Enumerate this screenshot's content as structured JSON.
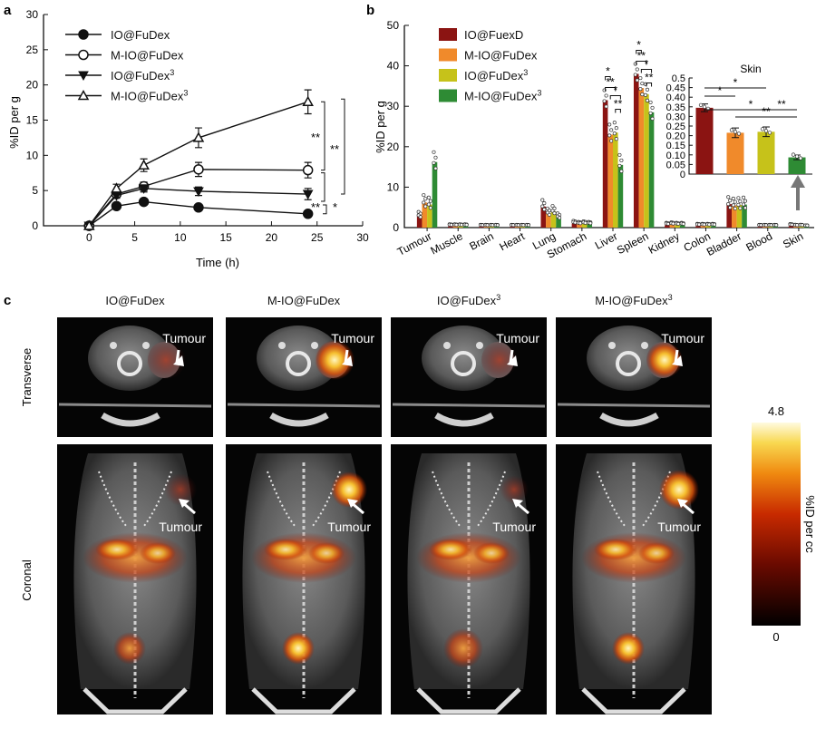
{
  "panel_labels": {
    "a": "a",
    "b": "b",
    "c": "c"
  },
  "chart_data": [
    {
      "id": "a",
      "type": "line",
      "xlabel": "Time (h)",
      "ylabel": "%ID per g",
      "xlim": [
        -5,
        30
      ],
      "ylim": [
        0,
        30
      ],
      "xticks": [
        0,
        5,
        10,
        15,
        20,
        25,
        30
      ],
      "yticks": [
        0,
        5,
        10,
        15,
        20,
        25,
        30
      ],
      "x": [
        0,
        3,
        6,
        12,
        24
      ],
      "series": [
        {
          "name": "IO@FuDex",
          "sup": "",
          "marker": "circle-filled",
          "values": [
            0,
            2.8,
            3.4,
            2.6,
            1.7
          ],
          "err": [
            0,
            0.2,
            0.3,
            0.3,
            0.2
          ]
        },
        {
          "name": "M-IO@FuDex",
          "sup": "",
          "marker": "circle-open",
          "values": [
            0,
            4.5,
            5.6,
            8.0,
            7.9
          ],
          "err": [
            0,
            0.5,
            0.6,
            1.0,
            1.1
          ]
        },
        {
          "name": "IO@FuDex",
          "sup": "3",
          "marker": "triangle-down-filled",
          "values": [
            0,
            4.3,
            5.3,
            4.9,
            4.5
          ],
          "err": [
            0,
            0.4,
            0.5,
            0.6,
            0.8
          ]
        },
        {
          "name": "M-IO@FuDex",
          "sup": "3",
          "marker": "triangle-up-open",
          "values": [
            0,
            5.3,
            8.6,
            12.5,
            17.6
          ],
          "err": [
            0,
            0.6,
            0.9,
            1.4,
            1.7
          ]
        }
      ],
      "significance": [
        {
          "label": "**",
          "between": [
            "M-IO@FuDex³",
            "M-IO@FuDex"
          ]
        },
        {
          "label": "**",
          "between": [
            "M-IO@FuDex³",
            "IO@FuDex³"
          ]
        },
        {
          "label": "**",
          "between": [
            "M-IO@FuDex",
            "IO@FuDex³"
          ]
        },
        {
          "label": "*",
          "between": [
            "IO@FuDex³",
            "IO@FuDex"
          ]
        }
      ]
    },
    {
      "id": "b",
      "type": "bar",
      "ylabel": "%ID per g",
      "ylim": [
        0,
        50
      ],
      "yticks": [
        0,
        10,
        20,
        30,
        40,
        50
      ],
      "categories": [
        "Tumour",
        "Muscle",
        "Brain",
        "Heart",
        "Lung",
        "Stomach",
        "Liver",
        "Spleen",
        "Kidney",
        "Colon",
        "Bladder",
        "Blood",
        "Skin"
      ],
      "series": [
        {
          "name": "IO@FuexD",
          "sup": "",
          "color": "#8b1412",
          "values": [
            2.8,
            0.3,
            0.2,
            0.2,
            5.2,
            1.0,
            31.5,
            38.0,
            0.6,
            0.4,
            5.8,
            0.2,
            0.35
          ]
        },
        {
          "name": "M-IO@FuDex",
          "sup": "",
          "color": "#f08a2b",
          "values": [
            6.2,
            0.3,
            0.2,
            0.2,
            3.5,
            0.8,
            23.0,
            34.5,
            0.7,
            0.4,
            5.5,
            0.2,
            0.21
          ]
        },
        {
          "name": "IO@FuDex",
          "sup": "3",
          "color": "#c6c21a",
          "values": [
            5.7,
            0.3,
            0.2,
            0.2,
            4.0,
            0.9,
            23.5,
            33.0,
            0.6,
            0.4,
            5.6,
            0.2,
            0.22
          ]
        },
        {
          "name": "M-IO@FuDex",
          "sup": "3",
          "color": "#2e8b34",
          "values": [
            16.2,
            0.3,
            0.2,
            0.2,
            2.5,
            0.8,
            15.5,
            28.5,
            0.6,
            0.4,
            5.7,
            0.2,
            0.09
          ]
        }
      ],
      "significance": [
        {
          "group": "Liver",
          "labels": [
            "*",
            "**",
            "*",
            "**"
          ]
        },
        {
          "group": "Spleen",
          "labels": [
            "*",
            "**",
            "*",
            "**"
          ]
        }
      ],
      "inset": {
        "title": "Skin",
        "ylim": [
          0,
          0.5
        ],
        "yticks": [
          "0",
          "0.05",
          "0.10",
          "0.15",
          "0.20",
          "0.25",
          "0.30",
          "0.35",
          "0.40",
          "0.45",
          "0.5"
        ],
        "values": [
          0.345,
          0.215,
          0.22,
          0.087
        ],
        "err": [
          0.02,
          0.025,
          0.025,
          0.012
        ],
        "significance": [
          {
            "label": "*",
            "between": [
              0,
              1
            ]
          },
          {
            "label": "*",
            "between": [
              0,
              2
            ]
          },
          {
            "label": "*",
            "between": [
              0,
              3
            ]
          },
          {
            "label": "**",
            "between": [
              1,
              3
            ]
          },
          {
            "label": "**",
            "between": [
              2,
              3
            ]
          }
        ]
      }
    }
  ],
  "imaging": {
    "columns": [
      {
        "name": "IO@FuDex",
        "sup": ""
      },
      {
        "name": "M-IO@FuDex",
        "sup": ""
      },
      {
        "name": "IO@FuDex",
        "sup": "3"
      },
      {
        "name": "M-IO@FuDex",
        "sup": "3"
      }
    ],
    "rows": [
      "Transverse",
      "Coronal"
    ],
    "tumour_label": "Tumour",
    "colorbar": {
      "max": "4.8",
      "min": "0",
      "label": "%ID per cc"
    }
  }
}
